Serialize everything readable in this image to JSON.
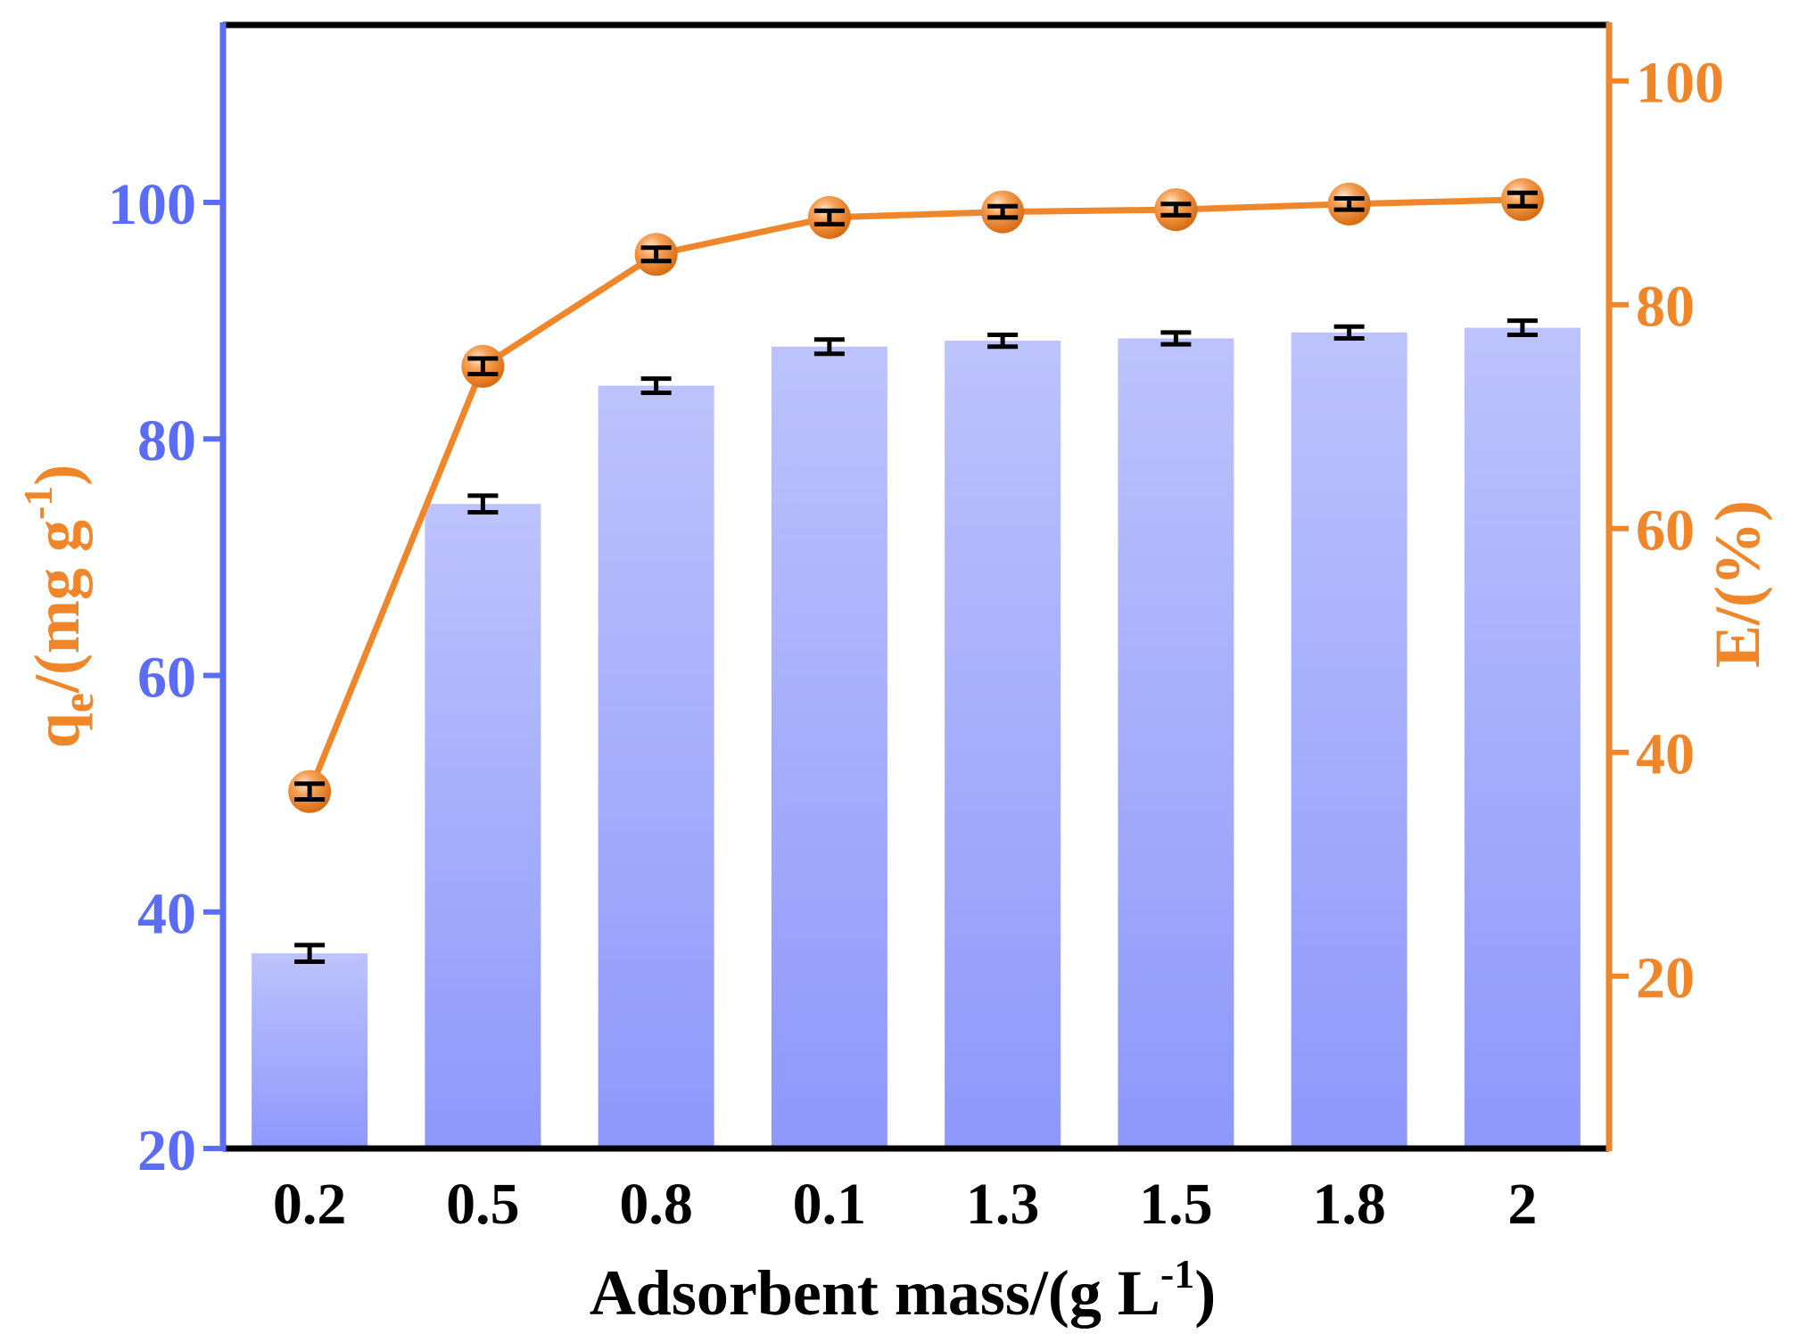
{
  "chart_data": {
    "type": "bar+line",
    "title": "",
    "xlabel": "Adsorbent mass/(g L",
    "xlabel_sup": "-1",
    "xlabel_close": ")",
    "ylabel_left": {
      "base": "q",
      "sub": "e",
      "mid": "/(mg g",
      "sup": "-1",
      "close": ")"
    },
    "ylabel_right": "E/(%)",
    "categories": [
      "0.2",
      "0.5",
      "0.8",
      "0.1",
      "1.3",
      "1.5",
      "1.8",
      "2"
    ],
    "left_axis": {
      "ylim": [
        20,
        115
      ],
      "ticks": [
        20,
        40,
        60,
        80,
        100
      ]
    },
    "right_axis": {
      "ylim": [
        4.6,
        105
      ],
      "ticks": [
        20,
        40,
        60,
        80,
        100
      ]
    },
    "series": [
      {
        "name": "qe",
        "type": "bar",
        "axis": "left",
        "values": [
          36.5,
          74.5,
          84.5,
          87.8,
          88.3,
          88.5,
          89.0,
          89.4
        ],
        "errors": [
          0.7,
          0.7,
          0.6,
          0.6,
          0.5,
          0.5,
          0.5,
          0.6
        ]
      },
      {
        "name": "E",
        "type": "line",
        "axis": "right",
        "values": [
          36.5,
          74.5,
          84.5,
          87.8,
          88.3,
          88.5,
          89.0,
          89.4
        ],
        "errors": [
          0.7,
          0.7,
          0.6,
          0.6,
          0.5,
          0.5,
          0.5,
          0.6
        ]
      }
    ],
    "colors": {
      "bar_top": "#bcc3fc",
      "bar_bottom": "#8d98fb",
      "left_axis": "#5b6cf7",
      "right_axis": "#f0862a",
      "line": "#f0862a",
      "frame": "#000000",
      "error_bar": "#000000"
    }
  }
}
